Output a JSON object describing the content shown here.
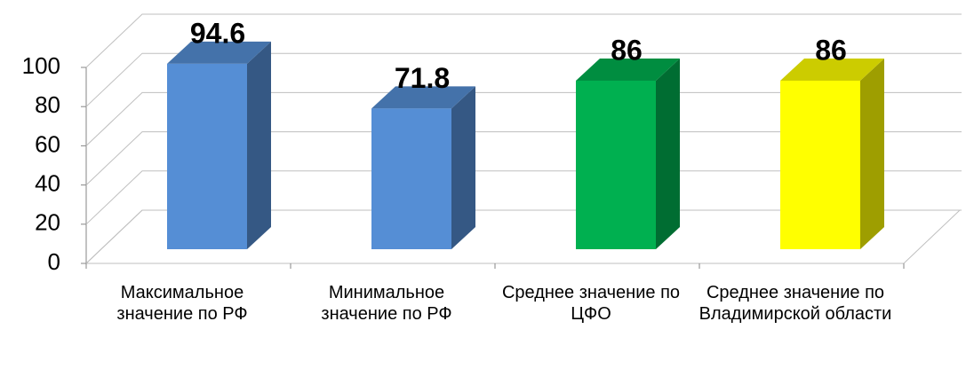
{
  "chart_data": {
    "type": "bar3d",
    "categories": [
      "Максимальное значение по РФ",
      "Минимальное значение по РФ",
      "Среднее значение по ЦФО",
      "Среднее значение по Владимирской области"
    ],
    "values": [
      94.6,
      71.8,
      86,
      86
    ],
    "colors": [
      "#558ed5",
      "#558ed5",
      "#00b050",
      "#ffff00"
    ],
    "ylim": [
      0,
      100
    ],
    "yticks": [
      0,
      20,
      40,
      60,
      80,
      100
    ],
    "grid": true
  }
}
